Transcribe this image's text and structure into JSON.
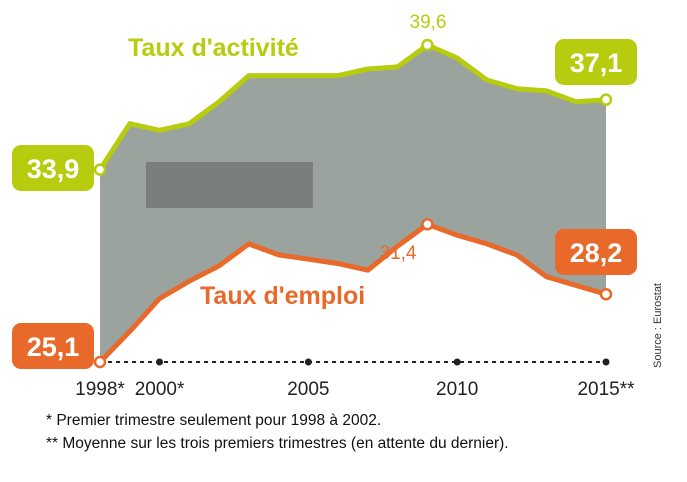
{
  "chart_data": {
    "type": "area",
    "x": [
      1998,
      1999,
      2000,
      2001,
      2002,
      2003,
      2004,
      2005,
      2006,
      2007,
      2008,
      2009,
      2010,
      2011,
      2012,
      2013,
      2014,
      2015
    ],
    "series": [
      {
        "name": "Taux d'activité",
        "values": [
          33.9,
          36.0,
          35.7,
          36.0,
          37.0,
          38.2,
          38.2,
          38.2,
          38.2,
          38.5,
          38.6,
          39.6,
          39.0,
          38.0,
          37.6,
          37.5,
          37.0,
          37.1
        ],
        "color": "#b7cc0e"
      },
      {
        "name": "Taux d'emploi",
        "values": [
          25.1,
          26.5,
          28.0,
          28.8,
          29.5,
          30.5,
          30.0,
          29.8,
          29.6,
          29.3,
          30.4,
          31.4,
          30.9,
          30.5,
          30.0,
          29.0,
          28.6,
          28.2
        ],
        "color": "#e8692a"
      }
    ],
    "xticks": [
      "1998*",
      "2000*",
      "2005",
      "2010",
      "2015**"
    ],
    "xtick_values": [
      1998,
      2000,
      2005,
      2010,
      2015
    ],
    "ylim": [
      25.1,
      39.6
    ],
    "fill_color": "#9aa39e",
    "grid": false,
    "annotations": {
      "activite_start": "33,9",
      "activite_peak": "39,6",
      "activite_end": "37,1",
      "emploi_start": "25,1",
      "emploi_peak": "31,4",
      "emploi_end": "28,2"
    },
    "source": "Source : Eurostat",
    "notes": [
      "* Premier trimestre seulement pour 1998 à 2002.",
      "** Moyenne sur les trois premiers trimestres (en attente du dernier)."
    ]
  }
}
